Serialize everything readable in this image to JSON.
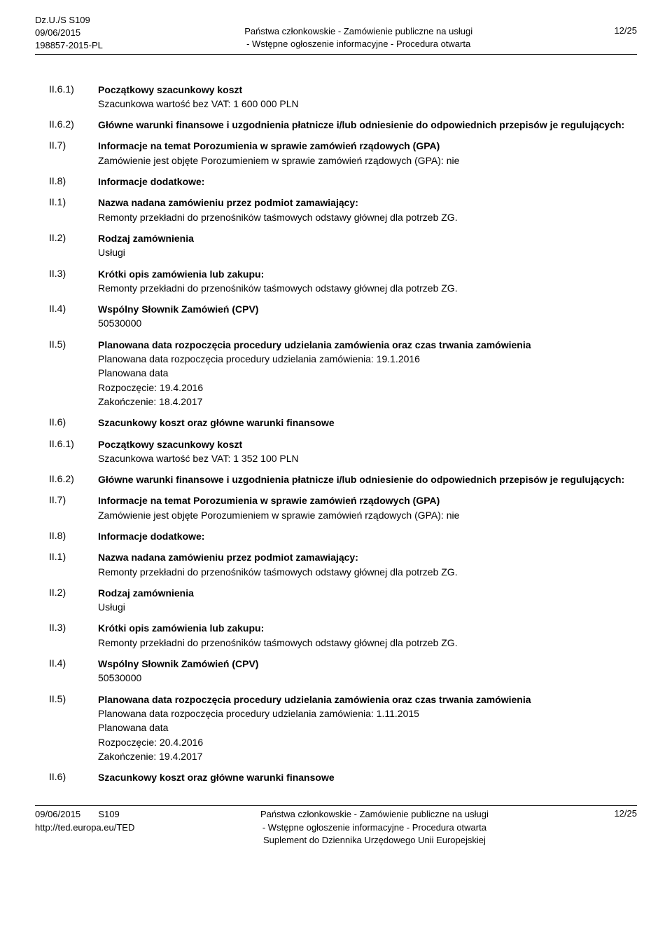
{
  "header": {
    "left_line1": "Dz.U./S S109",
    "left_line2": "09/06/2015",
    "left_line3": "198857-2015-PL",
    "center_line1": "Państwa członkowskie - Zamówienie publiczne na usługi",
    "center_line2": "- Wstępne ogłoszenie informacyjne - Procedura otwarta",
    "right": "12/25"
  },
  "sections": [
    {
      "label": "II.6.1)",
      "bold_title": "Początkowy szacunkowy koszt",
      "lines": [
        "Szacunkowa wartość bez VAT: 1 600 000 PLN"
      ]
    },
    {
      "label": "II.6.2)",
      "bold_title": "Główne warunki finansowe i uzgodnienia płatnicze i/lub odniesienie do odpowiednich przepisów je regulujących:",
      "lines": []
    },
    {
      "label": "II.7)",
      "bold_title": "Informacje na temat Porozumienia w sprawie zamówień rządowych (GPA)",
      "lines": [
        "Zamówienie jest objęte Porozumieniem w sprawie zamówień rządowych (GPA): nie"
      ]
    },
    {
      "label": "II.8)",
      "bold_title": "Informacje dodatkowe:",
      "lines": []
    },
    {
      "label": "II.1)",
      "bold_title": "Nazwa nadana zamówieniu przez podmiot zamawiający:",
      "lines": [
        "Remonty przekładni do przenośników taśmowych odstawy głównej dla potrzeb ZG."
      ]
    },
    {
      "label": "II.2)",
      "bold_title": "Rodzaj zamównienia",
      "lines": [
        "Usługi"
      ]
    },
    {
      "label": "II.3)",
      "bold_title": "Krótki opis zamówienia lub zakupu:",
      "lines": [
        "Remonty przekładni do przenośników taśmowych odstawy głównej dla potrzeb ZG."
      ]
    },
    {
      "label": "II.4)",
      "bold_title": "Wspólny Słownik Zamówień (CPV)",
      "lines": [
        "50530000"
      ]
    },
    {
      "label": "II.5)",
      "bold_title": "Planowana data rozpoczęcia procedury udzielania zamówienia oraz czas trwania zamówienia",
      "lines": [
        "Planowana data rozpoczęcia procedury udzielania zamówienia: 19.1.2016",
        "Planowana data",
        "Rozpoczęcie: 19.4.2016",
        "Zakończenie: 18.4.2017"
      ]
    },
    {
      "label": "II.6)",
      "bold_title": "Szacunkowy koszt oraz główne warunki finansowe",
      "lines": []
    },
    {
      "label": "II.6.1)",
      "bold_title": "Początkowy szacunkowy koszt",
      "lines": [
        "Szacunkowa wartość bez VAT: 1 352 100 PLN"
      ]
    },
    {
      "label": "II.6.2)",
      "bold_title": "Główne warunki finansowe i uzgodnienia płatnicze i/lub odniesienie do odpowiednich przepisów je regulujących:",
      "lines": []
    },
    {
      "label": "II.7)",
      "bold_title": "Informacje na temat Porozumienia w sprawie zamówień rządowych (GPA)",
      "lines": [
        "Zamówienie jest objęte Porozumieniem w sprawie zamówień rządowych (GPA): nie"
      ]
    },
    {
      "label": "II.8)",
      "bold_title": "Informacje dodatkowe:",
      "lines": []
    },
    {
      "label": "II.1)",
      "bold_title": "Nazwa nadana zamówieniu przez podmiot zamawiający:",
      "lines": [
        "Remonty przekładni do przenośników taśmowych odstawy głównej dla potrzeb ZG."
      ]
    },
    {
      "label": "II.2)",
      "bold_title": "Rodzaj zamównienia",
      "lines": [
        "Usługi"
      ]
    },
    {
      "label": "II.3)",
      "bold_title": "Krótki opis zamówienia lub zakupu:",
      "lines": [
        "Remonty przekładni do przenośników taśmowych odstawy głównej dla potrzeb ZG."
      ]
    },
    {
      "label": "II.4)",
      "bold_title": "Wspólny Słownik Zamówień (CPV)",
      "lines": [
        "50530000"
      ]
    },
    {
      "label": "II.5)",
      "bold_title": "Planowana data rozpoczęcia procedury udzielania zamówienia oraz czas trwania zamówienia",
      "lines": [
        "Planowana data rozpoczęcia procedury udzielania zamówienia: 1.11.2015",
        "Planowana data",
        "Rozpoczęcie: 20.4.2016",
        "Zakończenie: 19.4.2017"
      ]
    },
    {
      "label": "II.6)",
      "bold_title": "Szacunkowy koszt oraz główne warunki finansowe",
      "lines": []
    }
  ],
  "footer": {
    "left_line1": "09/06/2015",
    "left_line2": "http://ted.europa.eu/TED",
    "left_extra": "S109",
    "center_line1": "Państwa członkowskie - Zamówienie publiczne na usługi",
    "center_line2": "- Wstępne ogłoszenie informacyjne - Procedura otwarta",
    "center_line3": "Suplement do Dziennika Urzędowego Unii Europejskiej",
    "right": "12/25"
  }
}
